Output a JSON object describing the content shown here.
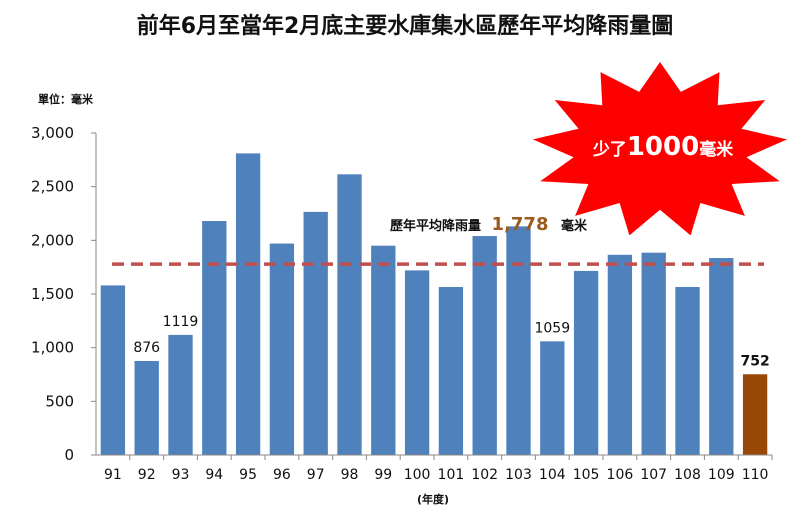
{
  "colors": {
    "bar": "#4f81bd",
    "highlight": "#974706",
    "avg_line": "#c0504d",
    "highlight_label": "#c00000",
    "avg_value": "#9c5a1e",
    "burst": "#ff0000"
  },
  "chart_data": {
    "type": "bar",
    "title": "前年6月至當年2月底主要水庫集水區歷年平均降雨量圖",
    "unit_label": "單位：毫米",
    "xlabel": "(年度)",
    "ylim": [
      0,
      3000
    ],
    "yticks": [
      0,
      500,
      1000,
      1500,
      2000,
      2500,
      3000
    ],
    "ytick_labels": [
      "0",
      "500",
      "1,000",
      "1,500",
      "2,000",
      "2,500",
      "3,000"
    ],
    "categories": [
      "91",
      "92",
      "93",
      "94",
      "95",
      "96",
      "97",
      "98",
      "99",
      "100",
      "101",
      "102",
      "103",
      "104",
      "105",
      "106",
      "107",
      "108",
      "109",
      "110"
    ],
    "values": [
      1580,
      876,
      1119,
      2180,
      2810,
      1970,
      2265,
      2615,
      1950,
      1720,
      1565,
      2040,
      2130,
      1059,
      1715,
      1865,
      1885,
      1565,
      1835,
      752
    ],
    "data_labels": [
      {
        "category": "92",
        "text": "876"
      },
      {
        "category": "93",
        "text": "1119"
      },
      {
        "category": "104",
        "text": "1059"
      },
      {
        "category": "110",
        "text": "752"
      }
    ],
    "highlight_category": "110",
    "average": {
      "value": 1778,
      "label_prefix": "歷年平均降雨量",
      "value_text": "1,778",
      "label_suffix": "毫米"
    },
    "callout": {
      "prefix": "少了",
      "number": "1000",
      "suffix": "毫米"
    },
    "grid": false,
    "legend": "none"
  }
}
